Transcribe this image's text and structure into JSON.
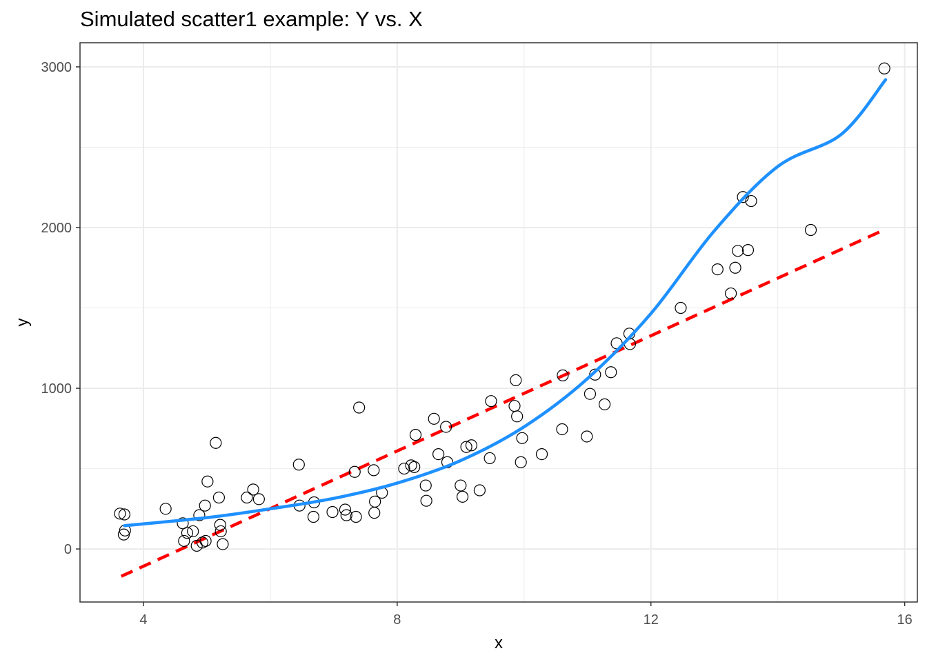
{
  "chart_data": {
    "type": "scatter",
    "title": "Simulated scatter1 example: Y vs. X",
    "xlabel": "x",
    "ylabel": "y",
    "xlim": [
      3.0,
      16.2
    ],
    "ylim": [
      -330,
      3150
    ],
    "x_ticks": [
      4,
      8,
      12,
      16
    ],
    "y_ticks": [
      0,
      1000,
      2000,
      3000
    ],
    "x_minor": [
      6,
      10,
      14
    ],
    "y_minor": [
      500,
      1500,
      2500
    ],
    "grid": true,
    "legend": "none",
    "colors": {
      "points_stroke": "#000000",
      "smooth_line": "#1e90ff",
      "linear_line": "#ff0000",
      "grid": "#ebebeb",
      "panel_border": "#333333"
    },
    "series": [
      {
        "type": "scatter",
        "points": [
          [
            3.63,
            220
          ],
          [
            3.7,
            215
          ],
          [
            3.69,
            90
          ],
          [
            3.71,
            115
          ],
          [
            4.35,
            250
          ],
          [
            4.62,
            160
          ],
          [
            4.64,
            50
          ],
          [
            4.69,
            100
          ],
          [
            4.78,
            110
          ],
          [
            4.84,
            20
          ],
          [
            4.88,
            210
          ],
          [
            4.93,
            40
          ],
          [
            4.97,
            270
          ],
          [
            4.98,
            50
          ],
          [
            5.01,
            420
          ],
          [
            5.14,
            660
          ],
          [
            5.19,
            320
          ],
          [
            5.21,
            150
          ],
          [
            5.22,
            110
          ],
          [
            5.25,
            30
          ],
          [
            5.63,
            320
          ],
          [
            5.73,
            370
          ],
          [
            5.82,
            310
          ],
          [
            6.46,
            270
          ],
          [
            6.45,
            525
          ],
          [
            6.68,
            200
          ],
          [
            6.69,
            290
          ],
          [
            6.98,
            230
          ],
          [
            7.18,
            245
          ],
          [
            7.2,
            210
          ],
          [
            7.33,
            480
          ],
          [
            7.35,
            200
          ],
          [
            7.4,
            880
          ],
          [
            7.63,
            490
          ],
          [
            7.64,
            225
          ],
          [
            7.65,
            295
          ],
          [
            7.76,
            350
          ],
          [
            8.11,
            500
          ],
          [
            8.22,
            520
          ],
          [
            8.27,
            510
          ],
          [
            8.29,
            710
          ],
          [
            8.45,
            395
          ],
          [
            8.46,
            300
          ],
          [
            8.58,
            810
          ],
          [
            8.65,
            590
          ],
          [
            8.77,
            760
          ],
          [
            8.79,
            540
          ],
          [
            9.0,
            395
          ],
          [
            9.03,
            325
          ],
          [
            9.09,
            635
          ],
          [
            9.17,
            645
          ],
          [
            9.3,
            365
          ],
          [
            9.46,
            565
          ],
          [
            9.48,
            920
          ],
          [
            9.85,
            890
          ],
          [
            9.87,
            1050
          ],
          [
            9.89,
            825
          ],
          [
            9.95,
            540
          ],
          [
            9.97,
            690
          ],
          [
            10.28,
            590
          ],
          [
            10.6,
            745
          ],
          [
            10.61,
            1080
          ],
          [
            10.99,
            700
          ],
          [
            11.04,
            965
          ],
          [
            11.12,
            1085
          ],
          [
            11.27,
            900
          ],
          [
            11.37,
            1100
          ],
          [
            11.46,
            1280
          ],
          [
            11.66,
            1340
          ],
          [
            11.67,
            1275
          ],
          [
            12.47,
            1500
          ],
          [
            13.05,
            1740
          ],
          [
            13.26,
            1590
          ],
          [
            13.33,
            1750
          ],
          [
            13.37,
            1855
          ],
          [
            13.45,
            2190
          ],
          [
            13.53,
            1860
          ],
          [
            13.58,
            2165
          ],
          [
            14.52,
            1985
          ],
          [
            15.68,
            2990
          ]
        ]
      },
      {
        "type": "line",
        "style": "solid",
        "points": [
          [
            3.7,
            145
          ],
          [
            5.0,
            195
          ],
          [
            6.0,
            250
          ],
          [
            7.0,
            315
          ],
          [
            8.0,
            410
          ],
          [
            9.0,
            550
          ],
          [
            10.0,
            760
          ],
          [
            11.0,
            1060
          ],
          [
            12.0,
            1465
          ],
          [
            13.0,
            1980
          ],
          [
            14.0,
            2380
          ],
          [
            15.0,
            2580
          ],
          [
            15.7,
            2920
          ]
        ]
      },
      {
        "type": "line",
        "style": "dashed",
        "points": [
          [
            3.65,
            -170
          ],
          [
            15.7,
            1990
          ]
        ]
      }
    ]
  }
}
